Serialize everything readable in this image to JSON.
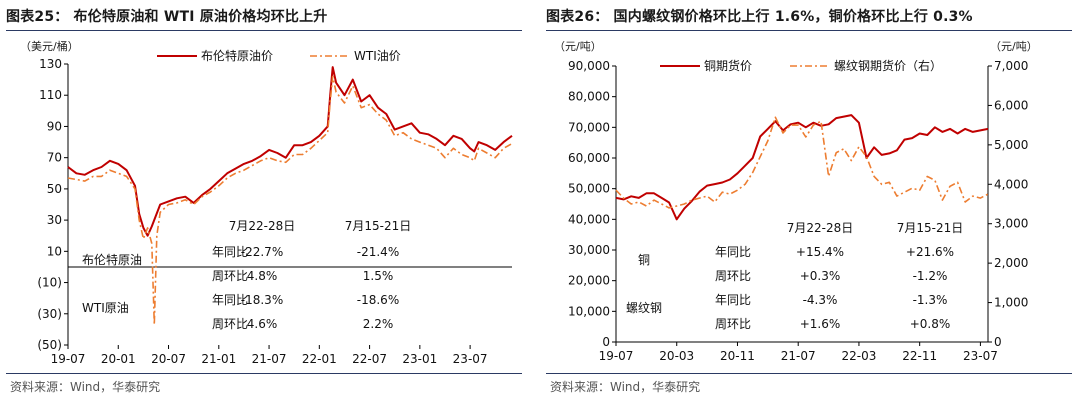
{
  "left": {
    "figure_title": "图表25： 布伦特原油和 WTI 原油价格均环比上升",
    "unit": "（美元/桶）",
    "source": "资料来源：Wind，华泰研究",
    "table": {
      "headers": [
        "7月22-28日",
        "7月15-21日"
      ],
      "groups": [
        {
          "name": "布伦特原油",
          "rows": [
            {
              "label": "年同比",
              "v1": "-22.7%",
              "v2": "-21.4%"
            },
            {
              "label": "周环比",
              "v1": "4.8%",
              "v2": "1.5%"
            }
          ]
        },
        {
          "name": "WTI原油",
          "rows": [
            {
              "label": "年同比",
              "v1": "-18.3%",
              "v2": "-18.6%"
            },
            {
              "label": "周环比",
              "v1": "4.6%",
              "v2": "2.2%"
            }
          ]
        }
      ]
    }
  },
  "right": {
    "figure_title": "图表26： 国内螺纹钢价格环比上行 1.6%，铜价格环比上行 0.3%",
    "unit_left": "（元/吨）",
    "unit_right": "（元/吨）",
    "source": "资料来源：Wind，华泰研究",
    "table": {
      "headers": [
        "7月22-28日",
        "7月15-21日"
      ],
      "groups": [
        {
          "name": "铜",
          "rows": [
            {
              "label": "年同比",
              "v1": "+15.4%",
              "v2": "+21.6%"
            },
            {
              "label": "周环比",
              "v1": "+0.3%",
              "v2": "-1.2%"
            }
          ]
        },
        {
          "name": "螺纹钢",
          "rows": [
            {
              "label": "年同比",
              "v1": "-4.3%",
              "v2": "-1.3%"
            },
            {
              "label": "周环比",
              "v1": "+1.6%",
              "v2": "+0.8%"
            }
          ]
        }
      ]
    }
  },
  "colors": {
    "primary": "#c00000",
    "secondary": "#ed7d31",
    "axis": "#000000",
    "rule": "#2b3a63"
  },
  "chart_data": [
    {
      "type": "line",
      "title": "布伦特原油和 WTI 原油价格均环比上升",
      "ylabel": "（美元/桶）",
      "ylim": [
        -50,
        130
      ],
      "yticks": [
        130,
        110,
        90,
        70,
        50,
        30,
        10,
        -10,
        -30,
        -50
      ],
      "ytick_labels": [
        "130",
        "110",
        "90",
        "70",
        "50",
        "30",
        "10",
        "(10)",
        "(30)",
        "(50)"
      ],
      "x_range": [
        0,
        53
      ],
      "x_ticks": [
        {
          "label": "19-07",
          "t": 0
        },
        {
          "label": "20-01",
          "t": 6
        },
        {
          "label": "20-07",
          "t": 12
        },
        {
          "label": "21-01",
          "t": 18
        },
        {
          "label": "21-07",
          "t": 24
        },
        {
          "label": "22-01",
          "t": 30
        },
        {
          "label": "22-07",
          "t": 36
        },
        {
          "label": "23-01",
          "t": 42
        },
        {
          "label": "23-07",
          "t": 48
        }
      ],
      "legend": "top-center",
      "series": [
        {
          "name": "布伦特原油价",
          "color": "#c00000",
          "style": "solid",
          "x": [
            0,
            1,
            2,
            3,
            4,
            5,
            6,
            7,
            8,
            8.5,
            9,
            9.5,
            10,
            11,
            12,
            13,
            14,
            15,
            16,
            17,
            18,
            19,
            20,
            21,
            22,
            23,
            24,
            25,
            26,
            27,
            28,
            29,
            30,
            31,
            31.3,
            31.6,
            32,
            33,
            34,
            35,
            36,
            37,
            38,
            39,
            40,
            41,
            42,
            43,
            44,
            45,
            46,
            47,
            48,
            48.5,
            49,
            50,
            51,
            52,
            53
          ],
          "y": [
            64,
            60,
            59,
            62,
            64,
            68,
            66,
            62,
            52,
            34,
            25,
            20,
            26,
            40,
            42,
            44,
            45,
            41,
            46,
            50,
            55,
            60,
            63,
            66,
            68,
            71,
            75,
            73,
            70,
            78,
            78,
            80,
            84,
            90,
            110,
            128,
            118,
            110,
            120,
            106,
            110,
            102,
            98,
            88,
            90,
            92,
            86,
            85,
            82,
            78,
            84,
            82,
            76,
            74,
            80,
            78,
            75,
            80,
            84
          ]
        },
        {
          "name": "WTI油价",
          "color": "#ed7d31",
          "style": "dashdot",
          "x": [
            0,
            1,
            2,
            3,
            4,
            5,
            6,
            7,
            8,
            8.5,
            9,
            9.5,
            10,
            10.3,
            10.6,
            11,
            12,
            13,
            14,
            15,
            16,
            17,
            18,
            19,
            20,
            21,
            22,
            23,
            24,
            25,
            26,
            27,
            28,
            29,
            30,
            31,
            31.3,
            31.6,
            32,
            33,
            34,
            35,
            36,
            37,
            38,
            39,
            40,
            41,
            42,
            43,
            44,
            45,
            46,
            47,
            48,
            48.5,
            49,
            50,
            51,
            52,
            53
          ],
          "y": [
            57,
            56,
            55,
            58,
            58,
            62,
            60,
            58,
            50,
            30,
            18,
            25,
            15,
            -37,
            20,
            35,
            40,
            41,
            43,
            40,
            45,
            48,
            52,
            57,
            60,
            62,
            65,
            68,
            70,
            68,
            67,
            72,
            72,
            76,
            81,
            86,
            106,
            122,
            112,
            105,
            116,
            102,
            104,
            98,
            94,
            84,
            86,
            82,
            80,
            78,
            76,
            70,
            76,
            72,
            70,
            68,
            76,
            73,
            70,
            76,
            79
          ]
        }
      ]
    },
    {
      "type": "line",
      "title": "国内螺纹钢价格环比上行 1.6%，铜价格环比上行 0.3%",
      "ylabel": "（元/吨）",
      "ylim": [
        0,
        90000
      ],
      "yticks": [
        0,
        10000,
        20000,
        30000,
        40000,
        50000,
        60000,
        70000,
        80000,
        90000
      ],
      "ytick_labels": [
        "0",
        "10,000",
        "20,000",
        "30,000",
        "40,000",
        "50,000",
        "60,000",
        "70,000",
        "80,000",
        "90,000"
      ],
      "y2label": "（元/吨）",
      "y2lim": [
        0,
        7000
      ],
      "y2ticks": [
        0,
        1000,
        2000,
        3000,
        4000,
        5000,
        6000,
        7000
      ],
      "y2tick_labels": [
        "0",
        "1,000",
        "2,000",
        "3,000",
        "4,000",
        "5,000",
        "6,000",
        "7,000"
      ],
      "x_range": [
        0,
        49
      ],
      "x_ticks": [
        {
          "label": "19-07",
          "t": 0
        },
        {
          "label": "20-03",
          "t": 8
        },
        {
          "label": "20-11",
          "t": 16
        },
        {
          "label": "21-07",
          "t": 24
        },
        {
          "label": "22-03",
          "t": 32
        },
        {
          "label": "22-11",
          "t": 40
        },
        {
          "label": "23-07",
          "t": 48
        }
      ],
      "legend": "top-center",
      "series": [
        {
          "name": "铜期货价",
          "axis": "left",
          "color": "#c00000",
          "style": "solid",
          "x": [
            0,
            1,
            2,
            3,
            4,
            5,
            6,
            7,
            8,
            9,
            10,
            11,
            12,
            13,
            14,
            15,
            16,
            17,
            18,
            19,
            20,
            21,
            22,
            23,
            24,
            25,
            26,
            27,
            28,
            29,
            30,
            31,
            32,
            33,
            34,
            35,
            36,
            37,
            38,
            39,
            40,
            41,
            42,
            43,
            44,
            45,
            46,
            47,
            48,
            49
          ],
          "y": [
            47000,
            46500,
            47500,
            47000,
            48500,
            48500,
            47000,
            45500,
            40000,
            43500,
            46000,
            49000,
            51000,
            51500,
            52000,
            53000,
            55000,
            57500,
            60000,
            67000,
            69500,
            72000,
            69000,
            71000,
            71500,
            70000,
            71500,
            70500,
            71000,
            73000,
            73500,
            74000,
            71500,
            60000,
            63500,
            61000,
            61500,
            62500,
            66000,
            66500,
            68000,
            67500,
            70000,
            68500,
            69500,
            68000,
            69500,
            68500,
            69000,
            69500
          ]
        },
        {
          "name": "螺纹钢期货价（右）",
          "axis": "right",
          "color": "#ed7d31",
          "style": "dashdot",
          "x": [
            0,
            1,
            2,
            3,
            4,
            5,
            6,
            7,
            8,
            9,
            10,
            11,
            12,
            13,
            14,
            15,
            16,
            17,
            18,
            19,
            20,
            21,
            22,
            23,
            24,
            25,
            26,
            27,
            28,
            29,
            30,
            31,
            32,
            33,
            34,
            35,
            36,
            37,
            38,
            39,
            40,
            41,
            42,
            43,
            44,
            45,
            46,
            47,
            48,
            49
          ],
          "y": [
            3850,
            3650,
            3500,
            3550,
            3450,
            3600,
            3500,
            3400,
            3450,
            3500,
            3600,
            3650,
            3700,
            3550,
            3800,
            3750,
            3850,
            4000,
            4300,
            4700,
            5100,
            5700,
            5300,
            5500,
            5500,
            5200,
            5500,
            5600,
            4200,
            4800,
            4900,
            4600,
            4950,
            4700,
            4200,
            4000,
            4050,
            3700,
            3800,
            3900,
            3850,
            4200,
            4100,
            3600,
            3950,
            4050,
            3550,
            3700,
            3650,
            3750
          ]
        }
      ]
    }
  ]
}
